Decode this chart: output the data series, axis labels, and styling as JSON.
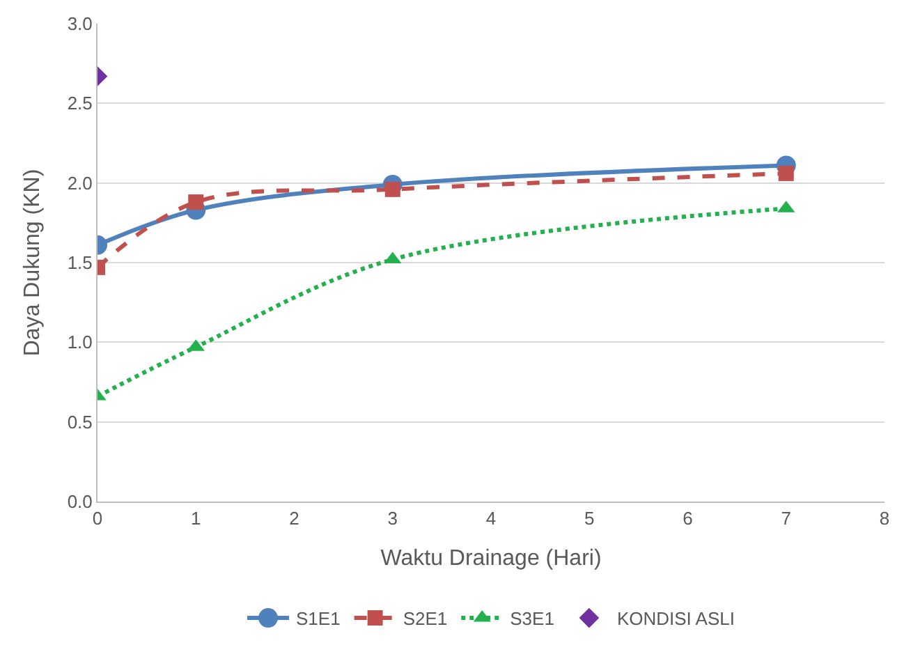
{
  "chart_data": {
    "type": "line",
    "xlabel": "Waktu Drainage (Hari)",
    "ylabel": "Daya Dukung (KN)",
    "xlim": [
      0,
      8
    ],
    "xticks": [
      0,
      1,
      2,
      3,
      4,
      5,
      6,
      7,
      8
    ],
    "ylim": [
      0,
      3
    ],
    "yticks": [
      {
        "value": 0,
        "label": "0.0"
      },
      {
        "value": 0.5,
        "label": "0.5"
      },
      {
        "value": 1,
        "label": "1.0"
      },
      {
        "value": 1.5,
        "label": "1.5"
      },
      {
        "value": 2,
        "label": "2.0"
      },
      {
        "value": 2.5,
        "label": "2.5"
      },
      {
        "value": 3,
        "label": "3.0"
      }
    ],
    "grid": "y",
    "legend": "bottom",
    "series": [
      {
        "name": "S1E1",
        "color": "#4f81bd",
        "marker": "circle",
        "line_style": "solid",
        "x": [
          0,
          1,
          3,
          7
        ],
        "values": [
          1.61,
          1.83,
          1.99,
          2.11
        ]
      },
      {
        "name": "S2E1",
        "color": "#c0504d",
        "marker": "square",
        "line_style": "dashed",
        "x": [
          0,
          1,
          3,
          7
        ],
        "values": [
          1.47,
          1.88,
          1.96,
          2.06
        ]
      },
      {
        "name": "S3E1",
        "color": "#22b14c",
        "marker": "triangle",
        "line_style": "dotted",
        "x": [
          0,
          1,
          3,
          7
        ],
        "values": [
          0.66,
          0.97,
          1.52,
          1.84
        ]
      },
      {
        "name": "KONDISI ASLI",
        "color": "#7030a0",
        "type": "scatter",
        "marker": "diamond",
        "x": [
          0
        ],
        "values": [
          2.67
        ]
      }
    ]
  }
}
